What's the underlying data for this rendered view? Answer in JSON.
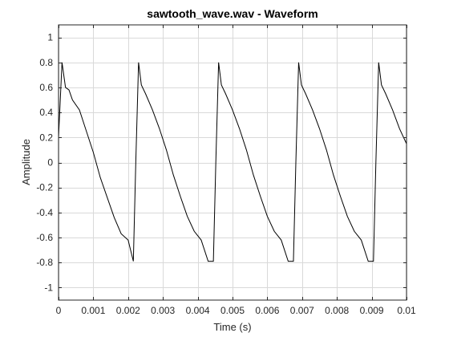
{
  "chart_data": {
    "type": "line",
    "title": "sawtooth_wave.wav - Waveform",
    "xlabel": "Time (s)",
    "ylabel": "Amplitude",
    "xlim": [
      0,
      0.01
    ],
    "ylim": [
      -1.1,
      1.1
    ],
    "grid": true,
    "x_ticks": [
      0,
      0.001,
      0.002,
      0.003,
      0.004,
      0.005,
      0.006,
      0.007,
      0.008,
      0.009,
      0.01
    ],
    "x_tick_labels": [
      "0",
      "0.001",
      "0.002",
      "0.003",
      "0.004",
      "0.005",
      "0.006",
      "0.007",
      "0.008",
      "0.009",
      "0.01"
    ],
    "y_ticks": [
      -1,
      -0.8,
      -0.6,
      -0.4,
      -0.2,
      0,
      0.2,
      0.4,
      0.6,
      0.8,
      1
    ],
    "y_tick_labels": [
      "-1",
      "-0.8",
      "-0.6",
      "-0.4",
      "-0.2",
      "0",
      "0.2",
      "0.4",
      "0.6",
      "0.8",
      "1"
    ],
    "series": [
      {
        "color": "#000000",
        "x": [
          0,
          0.0001,
          0.0002,
          0.0003,
          0.0004,
          0.0006,
          0.0008,
          0.001,
          0.0012,
          0.0014,
          0.0016,
          0.0018,
          0.002,
          0.00215,
          0.00222,
          0.0023,
          0.00238,
          0.0025,
          0.0027,
          0.0029,
          0.0031,
          0.0033,
          0.0035,
          0.0037,
          0.0039,
          0.0041,
          0.0043,
          0.00445,
          0.00452,
          0.0046,
          0.00468,
          0.0048,
          0.005,
          0.0052,
          0.0054,
          0.0056,
          0.0058,
          0.006,
          0.0062,
          0.0064,
          0.0066,
          0.00675,
          0.00682,
          0.0069,
          0.00698,
          0.0071,
          0.0073,
          0.0075,
          0.0077,
          0.0079,
          0.0081,
          0.0083,
          0.0085,
          0.0087,
          0.0089,
          0.00905,
          0.00912,
          0.0092,
          0.00928,
          0.0094,
          0.0096,
          0.0098,
          0.01
        ],
        "y": [
          0.2,
          0.8,
          0.6,
          0.58,
          0.5,
          0.42,
          0.25,
          0.08,
          -0.12,
          -0.28,
          -0.44,
          -0.57,
          -0.62,
          -0.79,
          0.0,
          0.8,
          0.62,
          0.55,
          0.42,
          0.27,
          0.1,
          -0.1,
          -0.27,
          -0.43,
          -0.55,
          -0.62,
          -0.79,
          -0.79,
          0.0,
          0.8,
          0.62,
          0.55,
          0.42,
          0.27,
          0.1,
          -0.1,
          -0.27,
          -0.43,
          -0.55,
          -0.62,
          -0.79,
          -0.79,
          0.0,
          0.8,
          0.62,
          0.55,
          0.42,
          0.27,
          0.1,
          -0.1,
          -0.27,
          -0.43,
          -0.55,
          -0.62,
          -0.79,
          -0.79,
          0.0,
          0.8,
          0.62,
          0.55,
          0.42,
          0.27,
          0.15
        ]
      }
    ]
  }
}
